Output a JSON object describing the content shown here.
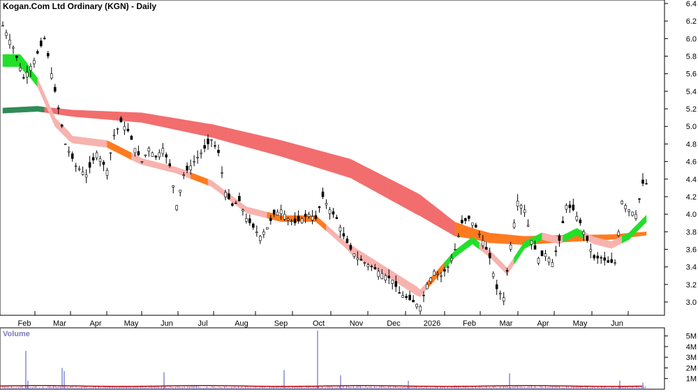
{
  "title": "Kogan.Com Ltd Ordinary (KGN) - Daily",
  "volume_title": "Volume",
  "colors": {
    "ribbon_long_down": "#f26d6d",
    "ribbon_long_up_dark": "#2e8b57",
    "ribbon_short_down": "#f7b3ae",
    "ribbon_short_up": "#22e02a",
    "ribbon_flat_orange": "#ff7a1f",
    "volume_bar": "#6b6bc8",
    "volume_ma": "#cc0000",
    "candle": "#000000"
  },
  "chart_data": [
    {
      "type": "candlestick",
      "ylim": [
        2.8,
        6.4
      ],
      "y_ticks": [
        "6.4",
        "6.2",
        "6.0",
        "5.8",
        "5.6",
        "5.4",
        "5.2",
        "5.0",
        "4.8",
        "4.6",
        "4.4",
        "4.2",
        "4.0",
        "3.8",
        "3.6",
        "3.4",
        "3.2",
        "3.0"
      ],
      "x_tick_labels": [
        "Feb",
        "Mar",
        "Apr",
        "May",
        "Jun",
        "Jul",
        "Aug",
        "Sep",
        "Oct",
        "Nov",
        "Dec",
        "2026",
        "Feb",
        "Mar",
        "Apr",
        "May",
        "Jun"
      ],
      "close_series": [
        [
          0,
          6.15
        ],
        [
          3,
          5.9
        ],
        [
          6,
          5.55
        ],
        [
          9,
          5.75
        ],
        [
          12,
          6.0
        ],
        [
          15,
          5.4
        ],
        [
          18,
          4.8
        ],
        [
          21,
          4.55
        ],
        [
          24,
          4.45
        ],
        [
          27,
          4.7
        ],
        [
          30,
          4.5
        ],
        [
          32,
          4.9
        ],
        [
          34,
          5.05
        ],
        [
          36,
          4.95
        ],
        [
          38,
          4.75
        ],
        [
          40,
          4.6
        ],
        [
          42,
          4.75
        ],
        [
          44,
          4.65
        ],
        [
          46,
          4.75
        ],
        [
          48,
          4.55
        ],
        [
          50,
          4.1
        ],
        [
          52,
          4.45
        ],
        [
          54,
          4.55
        ],
        [
          56,
          4.65
        ],
        [
          58,
          4.75
        ],
        [
          60,
          4.85
        ],
        [
          62,
          4.7
        ],
        [
          64,
          4.25
        ],
        [
          66,
          4.1
        ],
        [
          68,
          4.15
        ],
        [
          70,
          3.95
        ],
        [
          72,
          3.85
        ],
        [
          74,
          3.75
        ],
        [
          76,
          3.85
        ],
        [
          78,
          4.0
        ],
        [
          80,
          4.05
        ],
        [
          82,
          3.95
        ],
        [
          84,
          3.9
        ],
        [
          86,
          3.95
        ],
        [
          88,
          4.0
        ],
        [
          90,
          3.95
        ],
        [
          92,
          4.2
        ],
        [
          94,
          4.05
        ],
        [
          96,
          3.95
        ],
        [
          98,
          3.75
        ],
        [
          100,
          3.6
        ],
        [
          102,
          3.5
        ],
        [
          104,
          3.45
        ],
        [
          106,
          3.4
        ],
        [
          108,
          3.35
        ],
        [
          110,
          3.3
        ],
        [
          112,
          3.25
        ],
        [
          114,
          3.1
        ],
        [
          116,
          3.05
        ],
        [
          118,
          3.0
        ],
        [
          120,
          2.95
        ],
        [
          122,
          3.2
        ],
        [
          124,
          3.35
        ],
        [
          126,
          3.3
        ],
        [
          128,
          3.4
        ],
        [
          130,
          3.6
        ],
        [
          132,
          3.9
        ],
        [
          134,
          3.95
        ],
        [
          136,
          3.85
        ],
        [
          138,
          3.7
        ],
        [
          140,
          3.5
        ],
        [
          142,
          3.15
        ],
        [
          144,
          3.05
        ],
        [
          146,
          3.65
        ],
        [
          148,
          4.15
        ],
        [
          150,
          4.05
        ],
        [
          152,
          3.7
        ],
        [
          154,
          3.5
        ],
        [
          156,
          3.55
        ],
        [
          158,
          3.45
        ],
        [
          160,
          3.7
        ],
        [
          162,
          4.1
        ],
        [
          164,
          4.05
        ],
        [
          166,
          3.9
        ],
        [
          168,
          3.7
        ],
        [
          170,
          3.5
        ],
        [
          172,
          3.5
        ],
        [
          174,
          3.45
        ],
        [
          176,
          3.45
        ],
        [
          178,
          4.15
        ],
        [
          180,
          4.05
        ],
        [
          182,
          4.0
        ],
        [
          184,
          4.35
        ]
      ],
      "long_ribbon_mid": [
        [
          0,
          5.18
        ],
        [
          10,
          5.2
        ],
        [
          20,
          5.15
        ],
        [
          40,
          5.1
        ],
        [
          60,
          4.95
        ],
        [
          80,
          4.75
        ],
        [
          100,
          4.52
        ],
        [
          120,
          4.1
        ],
        [
          130,
          3.83
        ],
        [
          140,
          3.73
        ],
        [
          150,
          3.7
        ],
        [
          160,
          3.72
        ],
        [
          175,
          3.74
        ],
        [
          185,
          3.78
        ]
      ],
      "short_ribbon_mid": [
        [
          0,
          5.75
        ],
        [
          5,
          5.75
        ],
        [
          10,
          5.5
        ],
        [
          15,
          5.05
        ],
        [
          20,
          4.85
        ],
        [
          30,
          4.8
        ],
        [
          40,
          4.6
        ],
        [
          50,
          4.5
        ],
        [
          60,
          4.35
        ],
        [
          70,
          4.05
        ],
        [
          80,
          3.95
        ],
        [
          90,
          3.95
        ],
        [
          100,
          3.6
        ],
        [
          110,
          3.35
        ],
        [
          120,
          3.1
        ],
        [
          130,
          3.55
        ],
        [
          135,
          3.7
        ],
        [
          140,
          3.55
        ],
        [
          145,
          3.35
        ],
        [
          150,
          3.65
        ],
        [
          155,
          3.75
        ],
        [
          160,
          3.7
        ],
        [
          165,
          3.8
        ],
        [
          170,
          3.7
        ],
        [
          175,
          3.65
        ],
        [
          180,
          3.75
        ],
        [
          185,
          3.95
        ]
      ]
    },
    {
      "type": "bar",
      "name": "Volume",
      "y_ticks": [
        "5M",
        "4M",
        "3M",
        "2M",
        "1M"
      ],
      "ylim": [
        0,
        5500000
      ],
      "spikes": [
        [
          37,
          3600000
        ],
        [
          40,
          800000
        ],
        [
          89,
          2000000
        ],
        [
          92,
          1700000
        ],
        [
          235,
          1600000
        ],
        [
          407,
          1800000
        ],
        [
          455,
          5500000
        ],
        [
          488,
          1300000
        ],
        [
          585,
          800000
        ],
        [
          730,
          1500000
        ],
        [
          888,
          800000
        ],
        [
          921,
          600000
        ]
      ],
      "baseline_volume": 250000,
      "ma_level": 300000
    }
  ]
}
